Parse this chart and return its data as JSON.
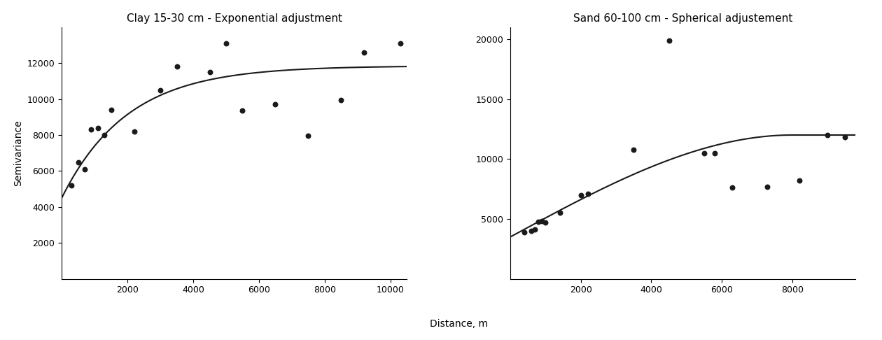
{
  "clay_title": "Clay 15-30 cm - Exponential adjustment",
  "sand_title": "Sand 60-100 cm - Spherical adjustement",
  "xlabel": "Distance, m",
  "ylabel": "Semivariance",
  "clay_points_x": [
    300,
    500,
    700,
    900,
    1100,
    1300,
    1500,
    2200,
    3000,
    3500,
    4500,
    5000,
    5500,
    6500,
    7500,
    8500,
    9200,
    10300
  ],
  "clay_points_y": [
    5200,
    6500,
    6100,
    8300,
    8400,
    8000,
    9400,
    8200,
    10500,
    11800,
    11500,
    13100,
    9350,
    9700,
    7950,
    9950,
    12600,
    13100
  ],
  "sand_points_x": [
    400,
    600,
    700,
    800,
    900,
    1000,
    1400,
    2000,
    2200,
    3500,
    4500,
    5500,
    5800,
    6300,
    7300,
    8200,
    9000,
    9500
  ],
  "sand_points_y": [
    3900,
    4000,
    4100,
    4750,
    4800,
    4700,
    5500,
    7000,
    7100,
    10800,
    19900,
    10500,
    10500,
    7600,
    7700,
    8200,
    12000,
    11800
  ],
  "clay_nugget": 4500,
  "clay_sill": 11850,
  "clay_range": 2000,
  "sand_nugget": 3500,
  "sand_sill": 12000,
  "sand_range": 8000,
  "clay_xlim": [
    0,
    10500
  ],
  "clay_ylim": [
    0,
    14000
  ],
  "clay_xticks": [
    2000,
    4000,
    6000,
    8000,
    10000
  ],
  "clay_yticks": [
    2000,
    4000,
    6000,
    8000,
    10000,
    12000
  ],
  "sand_xlim": [
    0,
    9800
  ],
  "sand_ylim": [
    0,
    21000
  ],
  "sand_xticks": [
    2000,
    4000,
    6000,
    8000
  ],
  "sand_yticks": [
    5000,
    10000,
    15000,
    20000
  ],
  "line_color": "#1a1a1a",
  "point_color": "#1a1a1a",
  "point_size": 22,
  "line_width": 1.5,
  "title_fontsize": 11,
  "label_fontsize": 10,
  "tick_fontsize": 9,
  "background_color": "#ffffff"
}
